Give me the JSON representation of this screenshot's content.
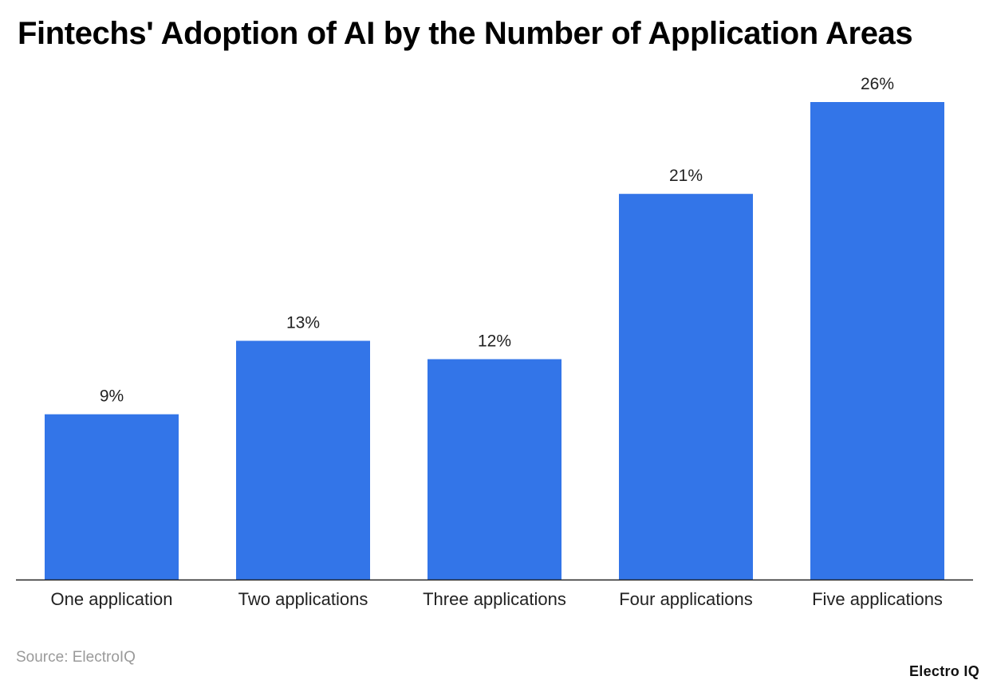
{
  "title": "Fintechs' Adoption of AI by the Number of Application Areas",
  "source": "Source: ElectroIQ",
  "brand": "Electro IQ",
  "colors": {
    "bar": "#3375e8",
    "axis": "#222222",
    "text": "#222222"
  },
  "chart_data": {
    "type": "bar",
    "categories": [
      "One application",
      "Two applications",
      "Three applications",
      "Four applications",
      "Five applications"
    ],
    "values": [
      9,
      13,
      12,
      21,
      26
    ],
    "value_labels": [
      "9%",
      "13%",
      "12%",
      "21%",
      "26%"
    ],
    "title": "Fintechs' Adoption of AI by the Number of Application Areas",
    "xlabel": "",
    "ylabel": "",
    "ylim": [
      0,
      26
    ],
    "grid": false,
    "legend": "none"
  }
}
